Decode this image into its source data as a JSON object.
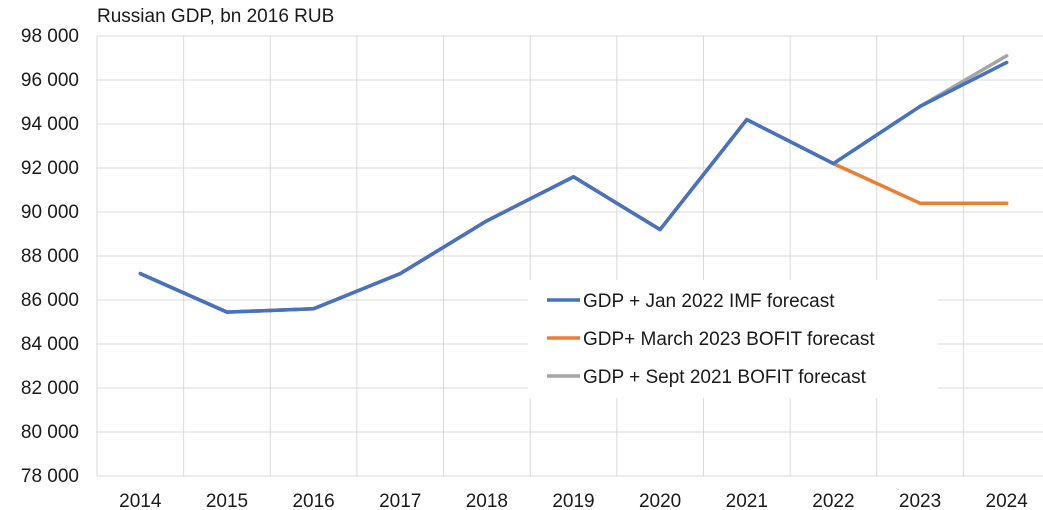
{
  "chart_data": {
    "type": "line",
    "title": "Russian GDP, bn 2016 RUB",
    "xlabel": "",
    "ylabel": "",
    "categories": [
      "2014",
      "2015",
      "2016",
      "2017",
      "2018",
      "2019",
      "2020",
      "2021",
      "2022",
      "2023",
      "2024"
    ],
    "ylim": [
      78000,
      98000
    ],
    "yticks": [
      78000,
      80000,
      82000,
      84000,
      86000,
      88000,
      90000,
      92000,
      94000,
      96000,
      98000
    ],
    "ytick_labels": [
      "78 000",
      "80 000",
      "82 000",
      "84 000",
      "86 000",
      "88 000",
      "90 000",
      "92 000",
      "94 000",
      "96 000",
      "98 000"
    ],
    "grid": true,
    "legend_position": "center-right",
    "series": [
      {
        "name": "GDP + Jan 2022 IMF forecast",
        "color": "#4472c4",
        "values": [
          87200,
          85450,
          85600,
          87200,
          89600,
          91600,
          89200,
          94200,
          92200,
          94800,
          96800
        ]
      },
      {
        "name": "GDP+ March 2023 BOFIT forecast",
        "color": "#ed7d31",
        "values": [
          87200,
          85450,
          85600,
          87200,
          89600,
          91600,
          89200,
          94200,
          92200,
          90400,
          90400
        ]
      },
      {
        "name": "GDP + Sept 2021 BOFIT forecast",
        "color": "#a5a5a5",
        "values": [
          87200,
          85450,
          85600,
          87200,
          89600,
          91600,
          89200,
          94200,
          92200,
          94800,
          97100
        ]
      }
    ]
  }
}
